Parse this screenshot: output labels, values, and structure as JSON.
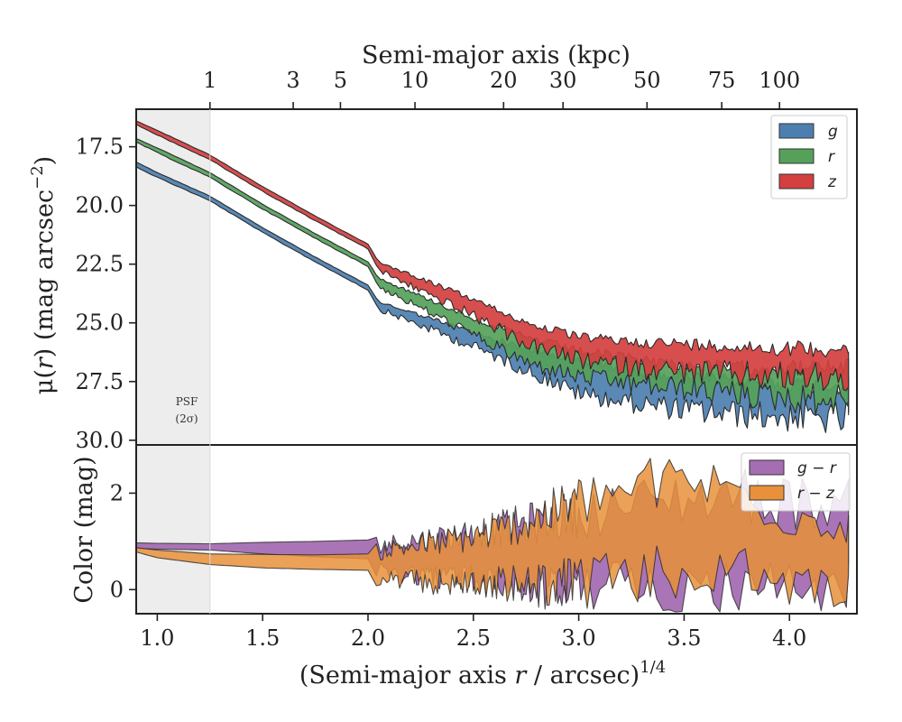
{
  "chart_data": [
    {
      "type": "area",
      "panel": "surface-brightness",
      "top_xlabel": "Semi-major axis (kpc)",
      "top_ticks": [
        {
          "kpc": 1,
          "label": "1"
        },
        {
          "kpc": 3,
          "label": "3"
        },
        {
          "kpc": 5,
          "label": "5"
        },
        {
          "kpc": 10,
          "label": "10"
        },
        {
          "kpc": 20,
          "label": "20"
        },
        {
          "kpc": 30,
          "label": "30"
        },
        {
          "kpc": 50,
          "label": "50"
        },
        {
          "kpc": 75,
          "label": "75"
        },
        {
          "kpc": 100,
          "label": "100"
        }
      ],
      "ylabel": "μ(r) (mag arcsec⁻²)",
      "ylabel_parts": {
        "mu": "μ",
        "open": "(",
        "r": "r",
        "close": ") (mag arcsec",
        "sup": "−2",
        "end": ")"
      },
      "ylim": [
        30.2,
        15.9
      ],
      "y_inverted": true,
      "y_ticks": [
        {
          "value": 17.5,
          "label": "17.5"
        },
        {
          "value": 20.0,
          "label": "20.0"
        },
        {
          "value": 22.5,
          "label": "22.5"
        },
        {
          "value": 25.0,
          "label": "25.0"
        },
        {
          "value": 27.5,
          "label": "27.5"
        },
        {
          "value": 30.0,
          "label": "30.0"
        }
      ],
      "legend_position": "top-right",
      "annotation": {
        "line1": "PSF",
        "line2": "(2σ)"
      },
      "series": [
        {
          "name": "g",
          "color": "#4C7FB0",
          "x": [
            0.9,
            1.0,
            1.25,
            1.5,
            1.75,
            2.0,
            2.05,
            2.5,
            2.75,
            3.0,
            3.25,
            3.5,
            3.75,
            4.0,
            4.28
          ],
          "y_bright": [
            18.15,
            18.6,
            19.6,
            20.95,
            22.2,
            23.4,
            24.1,
            25.4,
            26.1,
            26.6,
            27.0,
            27.3,
            27.5,
            27.6,
            27.7
          ],
          "y_faint": [
            18.35,
            18.8,
            19.8,
            21.15,
            22.4,
            23.6,
            24.4,
            26.0,
            27.0,
            28.0,
            28.4,
            28.7,
            28.9,
            29.0,
            29.1
          ]
        },
        {
          "name": "r",
          "color": "#55A15A",
          "x": [
            0.9,
            1.0,
            1.25,
            1.5,
            1.75,
            2.0,
            2.05,
            2.5,
            2.75,
            3.0,
            3.25,
            3.5,
            3.75,
            4.0,
            4.28
          ],
          "y_bright": [
            17.15,
            17.55,
            18.6,
            19.95,
            21.2,
            22.4,
            23.1,
            24.8,
            25.6,
            26.2,
            26.5,
            26.8,
            26.9,
            26.9,
            26.9
          ],
          "y_faint": [
            17.3,
            17.75,
            18.8,
            20.15,
            21.4,
            22.6,
            23.45,
            25.5,
            26.7,
            27.3,
            27.6,
            27.8,
            28.0,
            28.2,
            28.3
          ]
        },
        {
          "name": "z",
          "color": "#D43F3F",
          "x": [
            0.9,
            1.0,
            1.25,
            1.5,
            1.75,
            2.0,
            2.05,
            2.5,
            2.75,
            3.0,
            3.25,
            3.5,
            3.75,
            4.0,
            4.28
          ],
          "y_bright": [
            16.4,
            16.8,
            17.85,
            19.2,
            20.45,
            21.65,
            22.4,
            24.0,
            25.0,
            25.6,
            25.8,
            25.9,
            26.0,
            26.1,
            26.1
          ],
          "y_faint": [
            16.55,
            17.0,
            18.05,
            19.4,
            20.65,
            21.85,
            22.75,
            24.7,
            25.9,
            26.6,
            26.9,
            27.1,
            27.2,
            27.3,
            27.3
          ]
        }
      ]
    },
    {
      "type": "area",
      "panel": "color",
      "ylabel": "Color (mag)",
      "ylim": [
        -0.5,
        3.0
      ],
      "y_ticks": [
        {
          "value": 0,
          "label": "0"
        },
        {
          "value": 2,
          "label": "2"
        }
      ],
      "xlabel_parts": {
        "main": "(Semi-major axis ",
        "r": "r",
        "rest": " / arcsec)",
        "sup": "1/4"
      },
      "xlabel": "(Semi-major axis r / arcsec)^1/4",
      "xlim": [
        0.9,
        4.32
      ],
      "x_ticks": [
        {
          "value": 1.0,
          "label": "1.0"
        },
        {
          "value": 1.5,
          "label": "1.5"
        },
        {
          "value": 2.0,
          "label": "2.0"
        },
        {
          "value": 2.5,
          "label": "2.5"
        },
        {
          "value": 3.0,
          "label": "3.0"
        },
        {
          "value": 3.5,
          "label": "3.5"
        },
        {
          "value": 4.0,
          "label": "4.0"
        }
      ],
      "legend_position": "top-right",
      "series": [
        {
          "name": "g − r",
          "color": "#A56EB3",
          "x": [
            0.9,
            1.0,
            1.25,
            1.5,
            1.75,
            2.0,
            2.05,
            2.5,
            2.75,
            3.0,
            3.25,
            3.5,
            3.75,
            4.0,
            4.28
          ],
          "y_lo": [
            0.85,
            0.84,
            0.82,
            0.74,
            0.68,
            0.64,
            0.2,
            -0.1,
            -0.4,
            -0.5,
            -0.5,
            -0.5,
            -0.5,
            -0.5,
            -0.5
          ],
          "y_hi": [
            0.97,
            0.96,
            0.95,
            0.98,
            1.0,
            1.03,
            1.1,
            1.5,
            1.8,
            2.1,
            2.3,
            2.5,
            2.6,
            2.4,
            2.3
          ]
        },
        {
          "name": "r − z",
          "color": "#E8913A",
          "x": [
            0.9,
            1.0,
            1.25,
            1.5,
            1.75,
            2.0,
            2.05,
            2.5,
            2.75,
            3.0,
            3.25,
            3.5,
            3.75,
            4.0,
            4.28
          ],
          "y_lo": [
            0.78,
            0.66,
            0.52,
            0.45,
            0.42,
            0.4,
            0.0,
            -0.2,
            -0.3,
            -0.4,
            -0.4,
            -0.3,
            -0.2,
            -0.4,
            -0.5
          ],
          "y_hi": [
            0.87,
            0.82,
            0.74,
            0.73,
            0.72,
            0.74,
            1.0,
            1.4,
            1.8,
            2.4,
            2.7,
            2.9,
            2.6,
            2.0,
            1.9
          ]
        }
      ]
    }
  ],
  "psf_region": {
    "x_max": 1.25,
    "color": "#ededed"
  }
}
